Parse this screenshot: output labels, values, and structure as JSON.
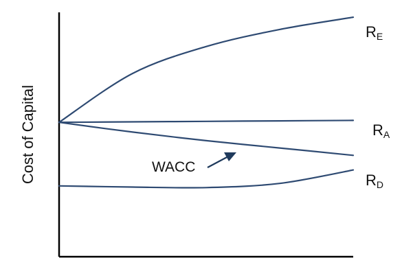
{
  "colors": {
    "curve": "#2E4A72",
    "arrow": "#1F3A5C",
    "axis": "#000000"
  },
  "chart_data": {
    "type": "line",
    "title": "",
    "xlabel": "",
    "ylabel": "Cost of Capital",
    "grid": false,
    "legend": "none",
    "x": [
      0,
      0.25,
      0.5,
      0.75,
      1.0
    ],
    "series": [
      {
        "name_main": "R",
        "name_sub": "E",
        "values": [
          0.55,
          0.75,
          0.86,
          0.93,
          0.98
        ]
      },
      {
        "name_main": "R",
        "name_sub": "A",
        "values": [
          0.55,
          0.552,
          0.554,
          0.556,
          0.558
        ]
      },
      {
        "name": "WACC",
        "values": [
          0.55,
          0.51,
          0.475,
          0.445,
          0.415
        ]
      },
      {
        "name_main": "R",
        "name_sub": "D",
        "values": [
          0.29,
          0.285,
          0.283,
          0.3,
          0.355
        ]
      }
    ]
  }
}
